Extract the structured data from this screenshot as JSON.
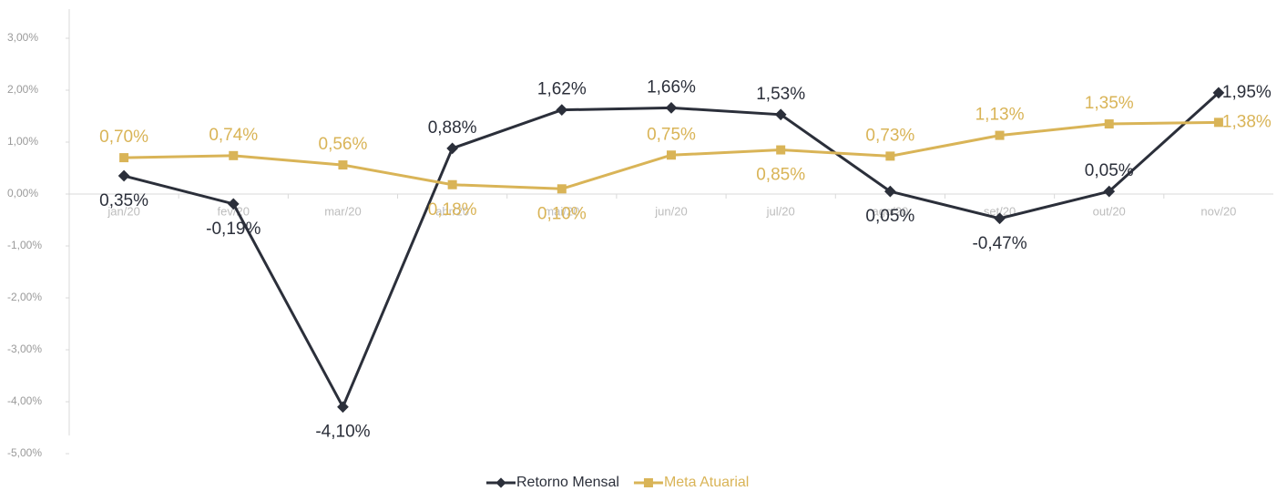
{
  "chart_data": {
    "type": "line",
    "categories": [
      "jan/20",
      "fev/20",
      "mar/20",
      "abr/20",
      "mai/20",
      "jun/20",
      "jul/20",
      "ago/20",
      "set/20",
      "out/20",
      "nov/20"
    ],
    "series": [
      {
        "name": "Retorno Mensal",
        "color": "#2b2f3a",
        "values": [
          0.35,
          -0.19,
          -4.1,
          0.88,
          1.62,
          1.66,
          1.53,
          0.05,
          -0.47,
          0.05,
          1.95
        ],
        "value_labels": [
          "0,35%",
          "-0,19%",
          "-4,10%",
          "0,88%",
          "1,62%",
          "1,66%",
          "1,53%",
          "0,05%",
          "-0,47%",
          "0,05%",
          "1,95%"
        ]
      },
      {
        "name": "Meta Atuarial",
        "color": "#d9b457",
        "values": [
          0.7,
          0.74,
          0.56,
          0.18,
          0.1,
          0.75,
          0.85,
          0.73,
          1.13,
          1.35,
          1.38
        ],
        "value_labels": [
          "0,70%",
          "0,74%",
          "0,56%",
          "0,18%",
          "0,10%",
          "0,75%",
          "0,85%",
          "0,73%",
          "1,13%",
          "1,35%",
          "1,38%"
        ]
      }
    ],
    "ylim": [
      -5,
      3
    ],
    "yticks": [
      {
        "value": -5,
        "label": "-5,00%"
      },
      {
        "value": -4,
        "label": "-4,00%"
      },
      {
        "value": -3,
        "label": "-3,00%"
      },
      {
        "value": -2,
        "label": "-2,00%"
      },
      {
        "value": -1,
        "label": "-1,00%"
      },
      {
        "value": 0,
        "label": "0,00%"
      },
      {
        "value": 1,
        "label": "1,00%"
      },
      {
        "value": 2,
        "label": "2,00%"
      },
      {
        "value": 3,
        "label": "3,00%"
      }
    ],
    "legend": "bottom"
  }
}
